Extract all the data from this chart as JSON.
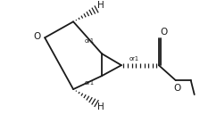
{
  "background_color": "#ffffff",
  "line_color": "#1a1a1a",
  "figsize": [
    2.24,
    1.38
  ],
  "dpi": 100,
  "xlim": [
    0,
    224
  ],
  "ylim": [
    0,
    138
  ]
}
